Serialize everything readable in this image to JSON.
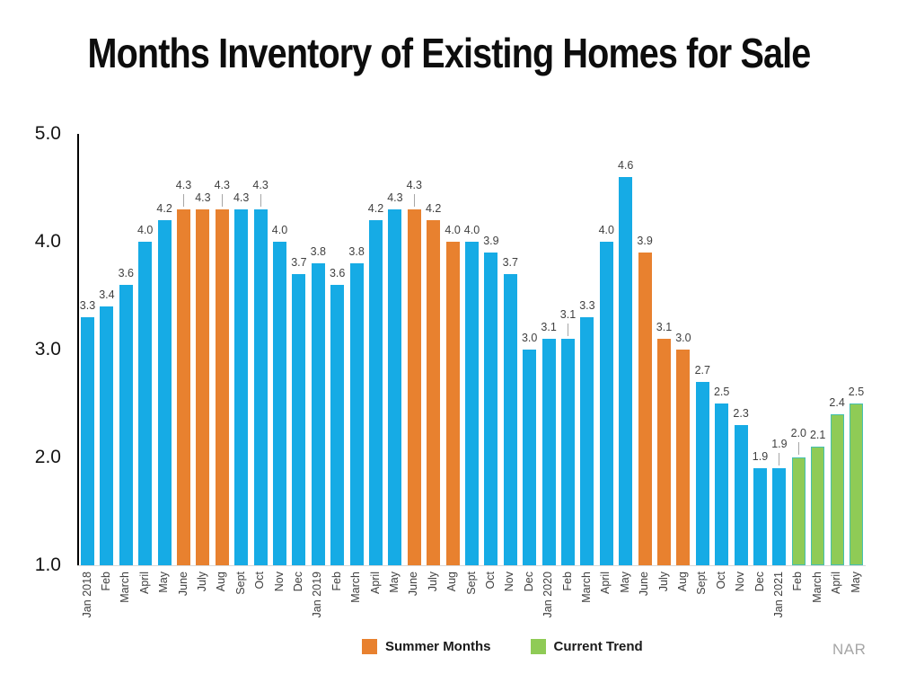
{
  "title": "Months Inventory of Existing Homes for Sale",
  "source": "NAR",
  "legend": [
    {
      "label": "Summer Months",
      "color": "#E8812F"
    },
    {
      "label": "Current Trend",
      "color": "#8FCB56"
    }
  ],
  "chart_data": {
    "type": "bar",
    "title": "Months Inventory of Existing Homes for Sale",
    "categories": [
      "Jan 2018",
      "Feb",
      "March",
      "April",
      "May",
      "June",
      "July",
      "Aug",
      "Sept",
      "Oct",
      "Nov",
      "Dec",
      "Jan 2019",
      "Feb",
      "March",
      "April",
      "May",
      "June",
      "July",
      "Aug",
      "Sept",
      "Oct",
      "Nov",
      "Dec",
      "Jan 2020",
      "Feb",
      "March",
      "April",
      "May",
      "June",
      "July",
      "Aug",
      "Sept",
      "Oct",
      "Nov",
      "Dec",
      "Jan 2021",
      "Feb",
      "March",
      "April",
      "May"
    ],
    "values": [
      3.3,
      3.4,
      3.6,
      4.0,
      4.2,
      4.3,
      4.3,
      4.3,
      4.3,
      4.3,
      4.0,
      3.7,
      3.8,
      3.6,
      3.8,
      4.2,
      4.3,
      4.3,
      4.2,
      4.0,
      4.0,
      3.9,
      3.7,
      3.0,
      3.1,
      3.1,
      3.3,
      4.0,
      4.6,
      3.9,
      3.1,
      3.0,
      2.7,
      2.5,
      2.3,
      1.9,
      1.9,
      2.0,
      2.1,
      2.4,
      2.5
    ],
    "groups": [
      "default",
      "default",
      "default",
      "default",
      "default",
      "summer",
      "summer",
      "summer",
      "default",
      "default",
      "default",
      "default",
      "default",
      "default",
      "default",
      "default",
      "default",
      "summer",
      "summer",
      "summer",
      "default",
      "default",
      "default",
      "default",
      "default",
      "default",
      "default",
      "default",
      "default",
      "summer",
      "summer",
      "summer",
      "default",
      "default",
      "default",
      "default",
      "default",
      "trend",
      "trend",
      "trend",
      "trend"
    ],
    "raised_label_indices": [
      5,
      7,
      9,
      17,
      25,
      36,
      37
    ],
    "ylim": [
      1.0,
      5.0
    ],
    "yticks": [
      5.0,
      4.0,
      3.0,
      2.0,
      1.0
    ],
    "grid": false,
    "legend_position": "bottom",
    "colors": {
      "default": "#16ABE5",
      "summer": "#E8812F",
      "trend_fill": "#8FCB56",
      "trend_border": "#45C0B0"
    },
    "source": "NAR"
  }
}
